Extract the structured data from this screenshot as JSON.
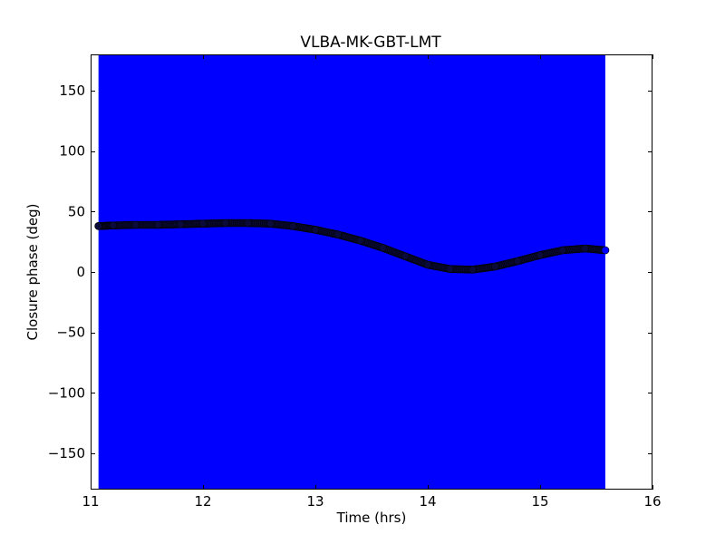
{
  "chart_data": {
    "type": "scatter",
    "title": "VLBA-MK-GBT-LMT",
    "xlabel": "Time (hrs)",
    "ylabel": "Closure phase (deg)",
    "xlim": [
      11,
      16
    ],
    "ylim": [
      -180,
      180
    ],
    "xticks": [
      11,
      12,
      13,
      14,
      15,
      16
    ],
    "xtick_labels": [
      "11",
      "12",
      "13",
      "14",
      "15",
      "16"
    ],
    "yticks": [
      150,
      100,
      50,
      0,
      -50,
      -100,
      -150
    ],
    "ytick_labels": [
      "150",
      "100",
      "50",
      "0",
      "−50",
      "−100",
      "−150"
    ],
    "grid": false,
    "error_band": {
      "x_range": [
        11.07,
        15.58
      ],
      "y_range": [
        -180,
        180
      ],
      "color": "#0000ff"
    },
    "series": [
      {
        "marker_color": "#0b0b3a",
        "edge_color": "#000000",
        "x": [
          11.07,
          11.2,
          11.4,
          11.6,
          11.8,
          12.0,
          12.2,
          12.4,
          12.6,
          12.8,
          13.0,
          13.2,
          13.4,
          13.6,
          13.8,
          14.0,
          14.2,
          14.4,
          14.6,
          14.8,
          15.0,
          15.2,
          15.4,
          15.58
        ],
        "y": [
          38,
          38.5,
          39,
          39,
          39.5,
          40,
          40.5,
          40.5,
          40,
          38,
          35,
          31,
          26,
          20,
          13,
          6,
          2.5,
          2,
          4.5,
          9,
          14,
          18,
          19.5,
          18
        ]
      }
    ]
  }
}
